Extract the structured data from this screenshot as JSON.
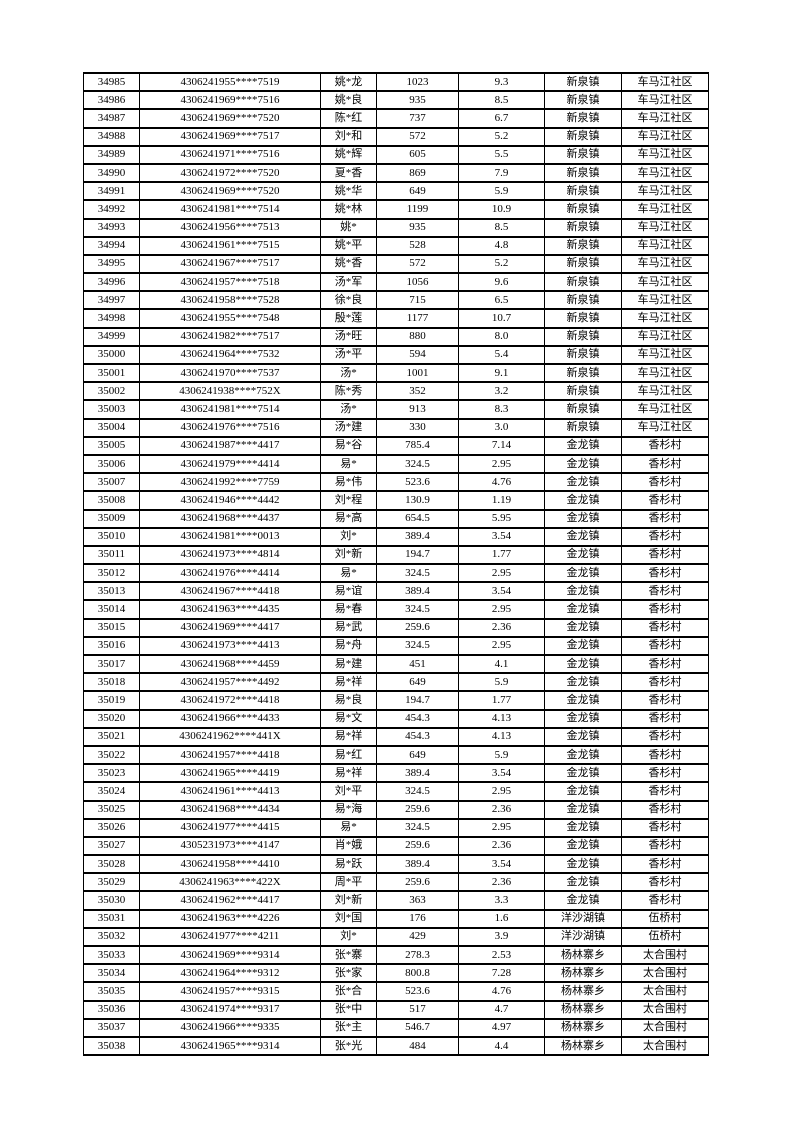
{
  "page": {
    "background_color": "#ffffff",
    "text_color": "#000000",
    "border_color": "#000000"
  },
  "table": {
    "column_keys": [
      "seq",
      "id-masked",
      "name",
      "amount",
      "value",
      "town",
      "village"
    ],
    "rows": [
      [
        "34985",
        "4306241955****7519",
        "姚*龙",
        "1023",
        "9.3",
        "新泉镇",
        "车马江社区"
      ],
      [
        "34986",
        "4306241969****7516",
        "姚*良",
        "935",
        "8.5",
        "新泉镇",
        "车马江社区"
      ],
      [
        "34987",
        "4306241969****7520",
        "陈*红",
        "737",
        "6.7",
        "新泉镇",
        "车马江社区"
      ],
      [
        "34988",
        "4306241969****7517",
        "刘*和",
        "572",
        "5.2",
        "新泉镇",
        "车马江社区"
      ],
      [
        "34989",
        "4306241971****7516",
        "姚*辉",
        "605",
        "5.5",
        "新泉镇",
        "车马江社区"
      ],
      [
        "34990",
        "4306241972****7520",
        "夏*香",
        "869",
        "7.9",
        "新泉镇",
        "车马江社区"
      ],
      [
        "34991",
        "4306241969****7520",
        "姚*华",
        "649",
        "5.9",
        "新泉镇",
        "车马江社区"
      ],
      [
        "34992",
        "4306241981****7514",
        "姚*林",
        "1199",
        "10.9",
        "新泉镇",
        "车马江社区"
      ],
      [
        "34993",
        "4306241956****7513",
        "姚*",
        "935",
        "8.5",
        "新泉镇",
        "车马江社区"
      ],
      [
        "34994",
        "4306241961****7515",
        "姚*平",
        "528",
        "4.8",
        "新泉镇",
        "车马江社区"
      ],
      [
        "34995",
        "4306241967****7517",
        "姚*香",
        "572",
        "5.2",
        "新泉镇",
        "车马江社区"
      ],
      [
        "34996",
        "4306241957****7518",
        "汤*军",
        "1056",
        "9.6",
        "新泉镇",
        "车马江社区"
      ],
      [
        "34997",
        "4306241958****7528",
        "徐*良",
        "715",
        "6.5",
        "新泉镇",
        "车马江社区"
      ],
      [
        "34998",
        "4306241955****7548",
        "殷*莲",
        "1177",
        "10.7",
        "新泉镇",
        "车马江社区"
      ],
      [
        "34999",
        "4306241982****7517",
        "汤*旺",
        "880",
        "8.0",
        "新泉镇",
        "车马江社区"
      ],
      [
        "35000",
        "4306241964****7532",
        "汤*平",
        "594",
        "5.4",
        "新泉镇",
        "车马江社区"
      ],
      [
        "35001",
        "4306241970****7537",
        "汤*",
        "1001",
        "9.1",
        "新泉镇",
        "车马江社区"
      ],
      [
        "35002",
        "4306241938****752X",
        "陈*秀",
        "352",
        "3.2",
        "新泉镇",
        "车马江社区"
      ],
      [
        "35003",
        "4306241981****7514",
        "汤*",
        "913",
        "8.3",
        "新泉镇",
        "车马江社区"
      ],
      [
        "35004",
        "4306241976****7516",
        "汤*建",
        "330",
        "3.0",
        "新泉镇",
        "车马江社区"
      ],
      [
        "35005",
        "4306241987****4417",
        "易*谷",
        "785.4",
        "7.14",
        "金龙镇",
        "香杉村"
      ],
      [
        "35006",
        "4306241979****4414",
        "易*",
        "324.5",
        "2.95",
        "金龙镇",
        "香杉村"
      ],
      [
        "35007",
        "4306241992****7759",
        "易*伟",
        "523.6",
        "4.76",
        "金龙镇",
        "香杉村"
      ],
      [
        "35008",
        "4306241946****4442",
        "刘*程",
        "130.9",
        "1.19",
        "金龙镇",
        "香杉村"
      ],
      [
        "35009",
        "4306241968****4437",
        "易*高",
        "654.5",
        "5.95",
        "金龙镇",
        "香杉村"
      ],
      [
        "35010",
        "4306241981****0013",
        "刘*",
        "389.4",
        "3.54",
        "金龙镇",
        "香杉村"
      ],
      [
        "35011",
        "4306241973****4814",
        "刘*新",
        "194.7",
        "1.77",
        "金龙镇",
        "香杉村"
      ],
      [
        "35012",
        "4306241976****4414",
        "易*",
        "324.5",
        "2.95",
        "金龙镇",
        "香杉村"
      ],
      [
        "35013",
        "4306241967****4418",
        "易*谊",
        "389.4",
        "3.54",
        "金龙镇",
        "香杉村"
      ],
      [
        "35014",
        "4306241963****4435",
        "易*春",
        "324.5",
        "2.95",
        "金龙镇",
        "香杉村"
      ],
      [
        "35015",
        "4306241969****4417",
        "易*武",
        "259.6",
        "2.36",
        "金龙镇",
        "香杉村"
      ],
      [
        "35016",
        "4306241973****4413",
        "易*舟",
        "324.5",
        "2.95",
        "金龙镇",
        "香杉村"
      ],
      [
        "35017",
        "4306241968****4459",
        "易*建",
        "451",
        "4.1",
        "金龙镇",
        "香杉村"
      ],
      [
        "35018",
        "4306241957****4492",
        "易*祥",
        "649",
        "5.9",
        "金龙镇",
        "香杉村"
      ],
      [
        "35019",
        "4306241972****4418",
        "易*良",
        "194.7",
        "1.77",
        "金龙镇",
        "香杉村"
      ],
      [
        "35020",
        "4306241966****4433",
        "易*文",
        "454.3",
        "4.13",
        "金龙镇",
        "香杉村"
      ],
      [
        "35021",
        "4306241962****441X",
        "易*祥",
        "454.3",
        "4.13",
        "金龙镇",
        "香杉村"
      ],
      [
        "35022",
        "4306241957****4418",
        "易*红",
        "649",
        "5.9",
        "金龙镇",
        "香杉村"
      ],
      [
        "35023",
        "4306241965****4419",
        "易*祥",
        "389.4",
        "3.54",
        "金龙镇",
        "香杉村"
      ],
      [
        "35024",
        "4306241961****4413",
        "刘*平",
        "324.5",
        "2.95",
        "金龙镇",
        "香杉村"
      ],
      [
        "35025",
        "4306241968****4434",
        "易*海",
        "259.6",
        "2.36",
        "金龙镇",
        "香杉村"
      ],
      [
        "35026",
        "4306241977****4415",
        "易*",
        "324.5",
        "2.95",
        "金龙镇",
        "香杉村"
      ],
      [
        "35027",
        "4305231973****4147",
        "肖*娥",
        "259.6",
        "2.36",
        "金龙镇",
        "香杉村"
      ],
      [
        "35028",
        "4306241958****4410",
        "易*跃",
        "389.4",
        "3.54",
        "金龙镇",
        "香杉村"
      ],
      [
        "35029",
        "4306241963****422X",
        "周*平",
        "259.6",
        "2.36",
        "金龙镇",
        "香杉村"
      ],
      [
        "35030",
        "4306241962****4417",
        "刘*新",
        "363",
        "3.3",
        "金龙镇",
        "香杉村"
      ],
      [
        "35031",
        "4306241963****4226",
        "刘*国",
        "176",
        "1.6",
        "洋沙湖镇",
        "伍桥村"
      ],
      [
        "35032",
        "4306241977****4211",
        "刘*",
        "429",
        "3.9",
        "洋沙湖镇",
        "伍桥村"
      ],
      [
        "35033",
        "4306241969****9314",
        "张*寨",
        "278.3",
        "2.53",
        "杨林寨乡",
        "太合围村"
      ],
      [
        "35034",
        "4306241964****9312",
        "张*家",
        "800.8",
        "7.28",
        "杨林寨乡",
        "太合围村"
      ],
      [
        "35035",
        "4306241957****9315",
        "张*合",
        "523.6",
        "4.76",
        "杨林寨乡",
        "太合围村"
      ],
      [
        "35036",
        "4306241974****9317",
        "张*中",
        "517",
        "4.7",
        "杨林寨乡",
        "太合围村"
      ],
      [
        "35037",
        "4306241966****9335",
        "张*主",
        "546.7",
        "4.97",
        "杨林寨乡",
        "太合围村"
      ],
      [
        "35038",
        "4306241965****9314",
        "张*光",
        "484",
        "4.4",
        "杨林寨乡",
        "太合围村"
      ]
    ]
  }
}
